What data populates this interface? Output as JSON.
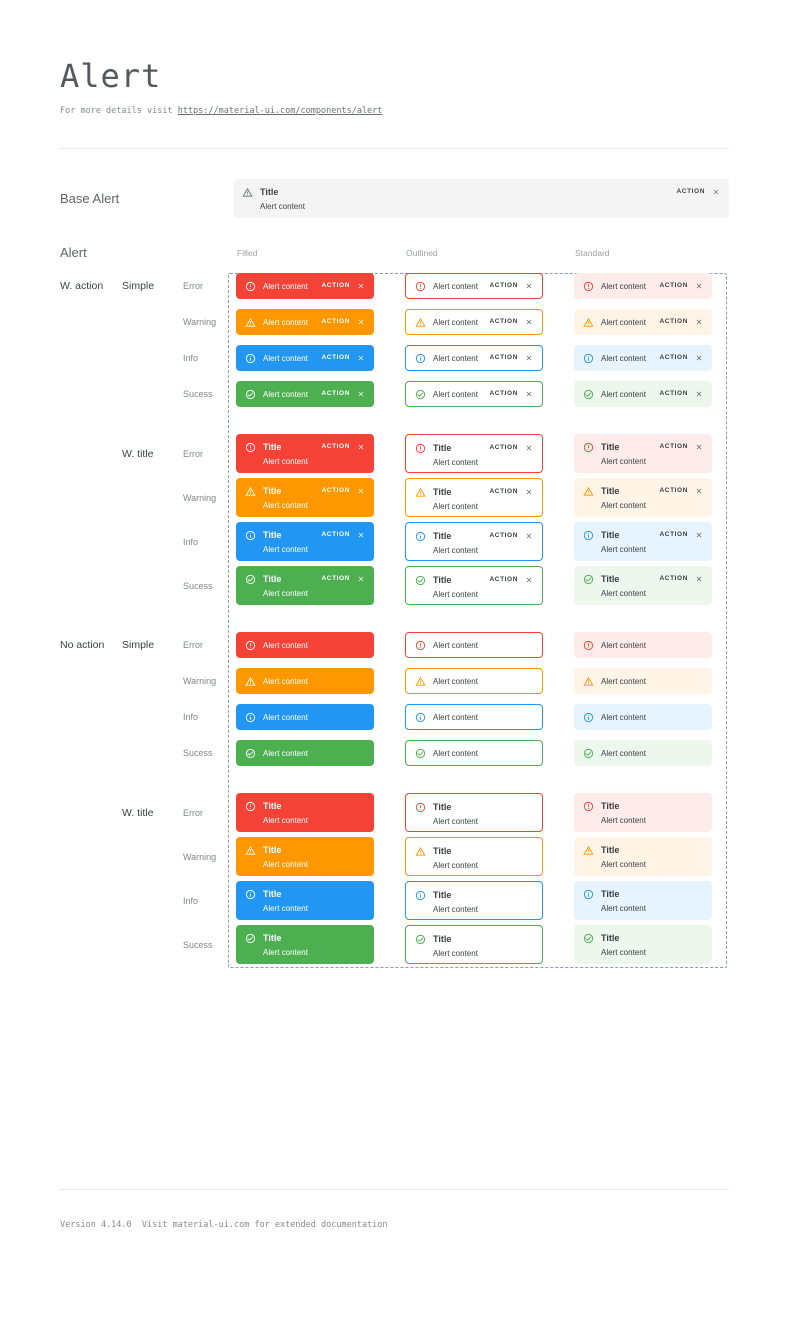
{
  "page": {
    "title": "Alert",
    "subtitle_prefix": "For more details visit ",
    "subtitle_link": "https://material-ui.com/components/alert",
    "footer": "Version 4.14.0  Visit material-ui.com for extended documentation"
  },
  "base_alert": {
    "label": "Base Alert",
    "title": "Title",
    "content": "Alert content",
    "action": "ACTION"
  },
  "alert_section": {
    "label": "Alert",
    "columns": [
      "Filled",
      "Outlined",
      "Standard"
    ],
    "variants": [
      "filled",
      "outlined",
      "standard"
    ],
    "severities": [
      {
        "key": "error",
        "label": "Error"
      },
      {
        "key": "warning",
        "label": "Warning"
      },
      {
        "key": "info",
        "label": "Info"
      },
      {
        "key": "success",
        "label": "Sucess"
      }
    ],
    "groups": [
      {
        "label": "W. action",
        "subgroups": [
          {
            "label": "Simple",
            "with_title": false,
            "with_action": true
          },
          {
            "label": "W. title",
            "with_title": true,
            "with_action": true
          }
        ]
      },
      {
        "label": "No action",
        "subgroups": [
          {
            "label": "Simple",
            "with_title": false,
            "with_action": false
          },
          {
            "label": "W. title",
            "with_title": true,
            "with_action": false
          }
        ]
      }
    ],
    "alert_text": {
      "title": "Title",
      "content": "Alert content",
      "action": "ACTION"
    }
  },
  "icons": {
    "error": "error-outline-icon",
    "warning": "warning-triangle-icon",
    "info": "info-outline-icon",
    "success": "check-circle-icon",
    "neutral": "warning-triangle-icon",
    "close": "close-icon"
  },
  "colors": {
    "error": {
      "main": "#f44336",
      "tint": "#fdecea"
    },
    "warning": {
      "main": "#ff9800",
      "tint": "#fff4e5"
    },
    "info": {
      "main": "#2196f3",
      "tint": "#e8f4fd"
    },
    "success": {
      "main": "#4caf50",
      "tint": "#edf7ed"
    },
    "neutral": {
      "main": "#6b7075",
      "tint": "#f4f4f4"
    },
    "text_dark": "#3a3e42",
    "text_light": "#ffffff",
    "dashed_border": "#8b99ad",
    "divider": "#e8e8e8"
  }
}
